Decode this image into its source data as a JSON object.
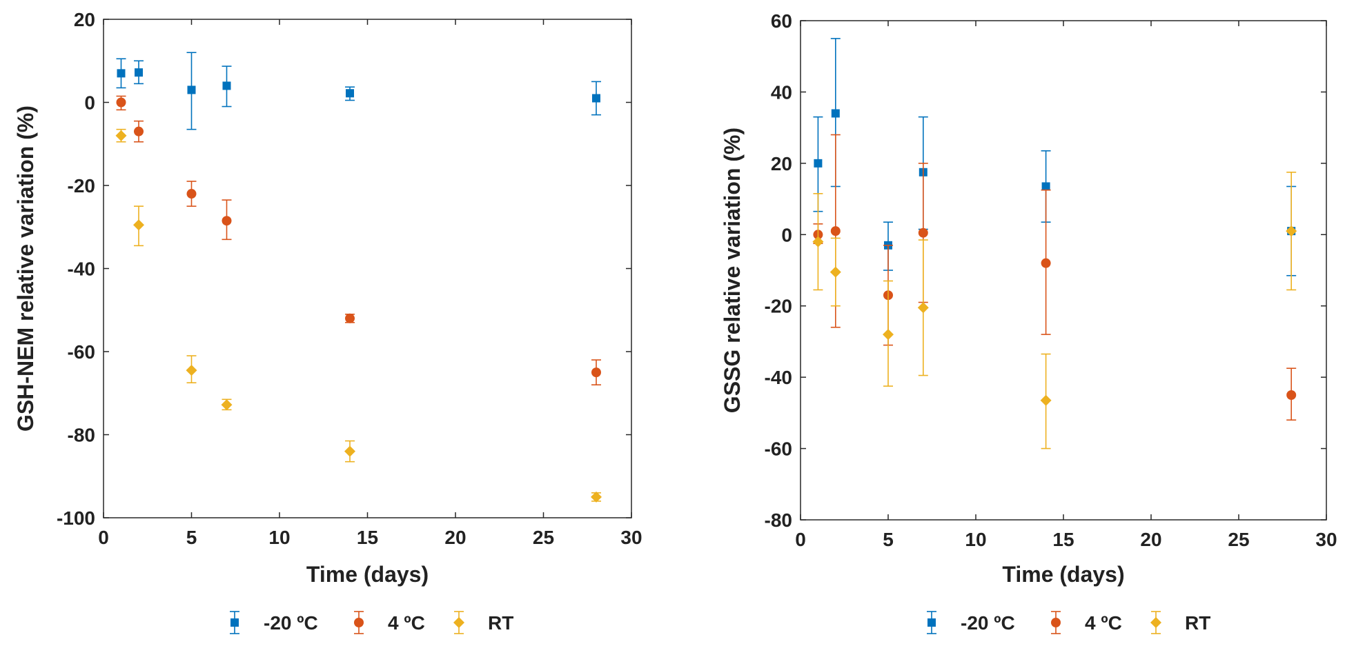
{
  "colors": {
    "m20": "#0072BD",
    "c4": "#D95319",
    "rt": "#EDB120",
    "axis": "#262626"
  },
  "chart_data": [
    {
      "type": "scatter",
      "xlabel": "Time (days)",
      "ylabel": "GSH-NEM relative variation (%)",
      "xlim": [
        0,
        30
      ],
      "ylim": [
        -100,
        20
      ],
      "xticks": [
        "0",
        "5",
        "10",
        "15",
        "20",
        "25",
        "30"
      ],
      "yticks": [
        "20",
        "0",
        "-20",
        "-40",
        "-60",
        "-80",
        "-100"
      ],
      "legend": {
        "position": "bottom-center",
        "entries": [
          "-20 ºC",
          "4 ºC",
          "RT"
        ]
      },
      "series": [
        {
          "name": "-20 ºC",
          "marker": "square",
          "points": [
            {
              "x": 1,
              "y": 7,
              "lo": 3.5,
              "hi": 10.5
            },
            {
              "x": 2,
              "y": 7.2,
              "lo": 4.5,
              "hi": 10
            },
            {
              "x": 5,
              "y": 3,
              "lo": -6.5,
              "hi": 12
            },
            {
              "x": 7,
              "y": 4,
              "lo": -1,
              "hi": 8.7
            },
            {
              "x": 14,
              "y": 2.2,
              "lo": 0.5,
              "hi": 3.7
            },
            {
              "x": 28,
              "y": 1,
              "lo": -3,
              "hi": 5
            }
          ]
        },
        {
          "name": "4 ºC",
          "marker": "circle",
          "points": [
            {
              "x": 1,
              "y": 0,
              "lo": -1.8,
              "hi": 1.5
            },
            {
              "x": 2,
              "y": -7,
              "lo": -9.5,
              "hi": -4.5
            },
            {
              "x": 5,
              "y": -22,
              "lo": -25,
              "hi": -19
            },
            {
              "x": 7,
              "y": -28.5,
              "lo": -33,
              "hi": -23.5
            },
            {
              "x": 14,
              "y": -52,
              "lo": -53,
              "hi": -51
            },
            {
              "x": 28,
              "y": -65,
              "lo": -68,
              "hi": -62
            }
          ]
        },
        {
          "name": "RT",
          "marker": "diamond",
          "points": [
            {
              "x": 1,
              "y": -8,
              "lo": -9.5,
              "hi": -6.5
            },
            {
              "x": 2,
              "y": -29.5,
              "lo": -34.5,
              "hi": -25
            },
            {
              "x": 5,
              "y": -64.5,
              "lo": -67.5,
              "hi": -61
            },
            {
              "x": 7,
              "y": -72.8,
              "lo": -74,
              "hi": -71.5
            },
            {
              "x": 14,
              "y": -84,
              "lo": -86.5,
              "hi": -81.5
            },
            {
              "x": 28,
              "y": -95,
              "lo": -96,
              "hi": -94
            }
          ]
        }
      ]
    },
    {
      "type": "scatter",
      "xlabel": "Time (days)",
      "ylabel": "GSSG relative variation (%)",
      "xlim": [
        0,
        30
      ],
      "ylim": [
        -80,
        60
      ],
      "xticks": [
        "0",
        "5",
        "10",
        "15",
        "20",
        "25",
        "30"
      ],
      "yticks": [
        "60",
        "40",
        "20",
        "0",
        "-20",
        "-40",
        "-60",
        "-80"
      ],
      "legend": {
        "position": "bottom-center",
        "entries": [
          "-20 ºC",
          "4 ºC",
          "RT"
        ]
      },
      "series": [
        {
          "name": "-20 ºC",
          "marker": "square",
          "points": [
            {
              "x": 1,
              "y": 20,
              "lo": 6.5,
              "hi": 33
            },
            {
              "x": 2,
              "y": 34,
              "lo": 13.5,
              "hi": 55
            },
            {
              "x": 5,
              "y": -3,
              "lo": -10,
              "hi": 3.5
            },
            {
              "x": 7,
              "y": 17.5,
              "lo": 1.5,
              "hi": 33
            },
            {
              "x": 14,
              "y": 13.5,
              "lo": 3.5,
              "hi": 23.5
            },
            {
              "x": 28,
              "y": 1,
              "lo": -11.5,
              "hi": 13.5
            }
          ]
        },
        {
          "name": "4 ºC",
          "marker": "circle",
          "points": [
            {
              "x": 1,
              "y": 0,
              "lo": -2.5,
              "hi": 3
            },
            {
              "x": 2,
              "y": 1,
              "lo": -26,
              "hi": 28
            },
            {
              "x": 5,
              "y": -17,
              "lo": -31,
              "hi": -3
            },
            {
              "x": 7,
              "y": 0.5,
              "lo": -19,
              "hi": 20
            },
            {
              "x": 14,
              "y": -8,
              "lo": -28,
              "hi": 12.5
            },
            {
              "x": 28,
              "y": -45,
              "lo": -52,
              "hi": -37.5
            }
          ]
        },
        {
          "name": "RT",
          "marker": "diamond",
          "points": [
            {
              "x": 1,
              "y": -2,
              "lo": -15.5,
              "hi": 11.5
            },
            {
              "x": 2,
              "y": -10.5,
              "lo": -20,
              "hi": -1
            },
            {
              "x": 5,
              "y": -28,
              "lo": -42.5,
              "hi": -13
            },
            {
              "x": 7,
              "y": -20.5,
              "lo": -39.5,
              "hi": -1.5
            },
            {
              "x": 14,
              "y": -46.5,
              "lo": -60,
              "hi": -33.5
            },
            {
              "x": 28,
              "y": 1,
              "lo": -15.5,
              "hi": 17.5
            }
          ]
        }
      ]
    }
  ]
}
